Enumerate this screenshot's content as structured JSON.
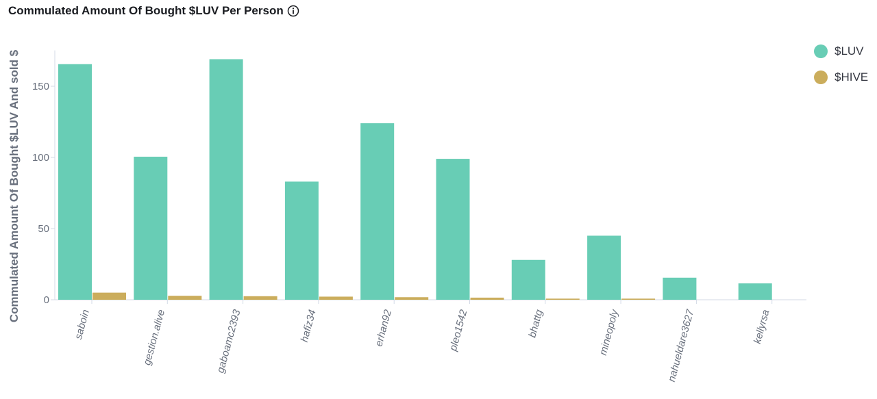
{
  "title": "Commulated Amount Of Bought $LUV Per Person",
  "icons": {
    "info": "info-icon"
  },
  "colors": {
    "luv": "#68cdb5",
    "hive": "#cbad5c",
    "axis": "#d3dae6",
    "tick_text": "#69707d",
    "label_text": "#69707d"
  },
  "legend": [
    {
      "label": "$LUV",
      "color": "#68cdb5"
    },
    {
      "label": "$HIVE",
      "color": "#cbad5c"
    }
  ],
  "chart_data": {
    "type": "bar",
    "title": "Commulated Amount Of Bought $LUV Per Person",
    "xlabel": "",
    "ylabel": "Commulated Amount Of Bought $LUV And sold $",
    "ylim": [
      0,
      180
    ],
    "yticks": [
      0,
      50,
      100,
      150
    ],
    "categories": [
      "saboin",
      "gestion.alive",
      "gaboamc2393",
      "hafiz34",
      "erhan92",
      "pleo1542",
      "bhattg",
      "mineopoly",
      "nahueldare3627",
      "kellyrsa"
    ],
    "series": [
      {
        "name": "$LUV",
        "values": [
          165.5,
          100.5,
          169,
          83,
          124,
          99,
          28,
          45,
          15.5,
          11.5
        ]
      },
      {
        "name": "$HIVE",
        "values": [
          5,
          2.8,
          2.5,
          2.2,
          1.8,
          1.5,
          0.8,
          0.8,
          0,
          0
        ]
      }
    ],
    "grid": false,
    "legend_position": "top-right"
  }
}
